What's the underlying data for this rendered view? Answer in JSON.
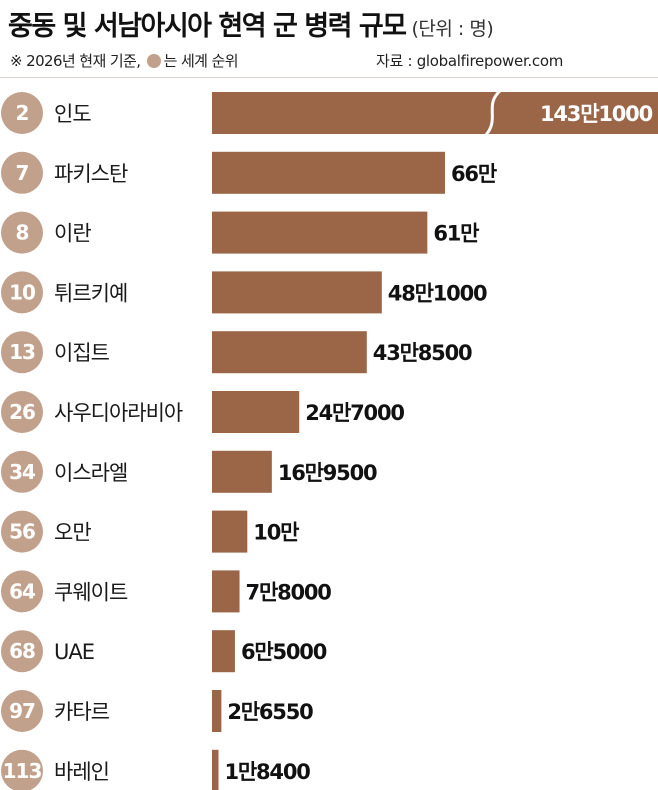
{
  "header": {
    "title": "중동 및 서남아시아 현역 군 병력 규모",
    "unit": "(단위 : 명)",
    "note_prefix": "※ 2026년 현재 기준,",
    "note_suffix": "는 세계 순위",
    "source": "자료 : globalfirepower.com"
  },
  "colors": {
    "bar": "#9a6647",
    "rank_circle": "#c1a08c",
    "text": "#1a1a1a"
  },
  "chart_data": {
    "type": "bar",
    "orientation": "horizontal",
    "unit": "명",
    "axis_break_on": "인도",
    "categories": [
      "인도",
      "파키스탄",
      "이란",
      "튀르키예",
      "이집트",
      "사우디아라비아",
      "이스라엘",
      "오만",
      "쿠웨이트",
      "UAE",
      "카타르",
      "바레인"
    ],
    "ranks": [
      "2",
      "7",
      "8",
      "10",
      "13",
      "26",
      "34",
      "56",
      "64",
      "68",
      "97",
      "113"
    ],
    "values": [
      1431000,
      660000,
      610000,
      481000,
      438500,
      247000,
      169500,
      100000,
      78000,
      65000,
      26550,
      18400
    ],
    "value_labels": [
      "143만1000",
      "66만",
      "61만",
      "48만1000",
      "43만8500",
      "24만7000",
      "16만9500",
      "10만",
      "7만8000",
      "6만5000",
      "2만6550",
      "1만8400"
    ]
  }
}
